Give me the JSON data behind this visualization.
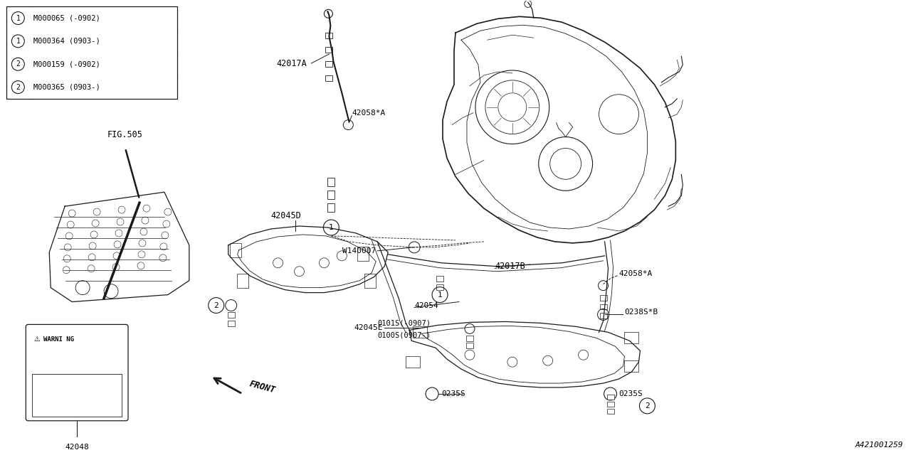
{
  "bg_color": "#ffffff",
  "line_color": "#1a1a1a",
  "fig_ref": "A421001259",
  "parts_table": {
    "rows": [
      {
        "circle": "1",
        "code": "M000065 (-0902)"
      },
      {
        "circle": "1",
        "code": "M000364 (0903-)"
      },
      {
        "circle": "2",
        "code": "M000159 (-0902)"
      },
      {
        "circle": "2",
        "code": "M000365 (0903-)"
      }
    ]
  }
}
